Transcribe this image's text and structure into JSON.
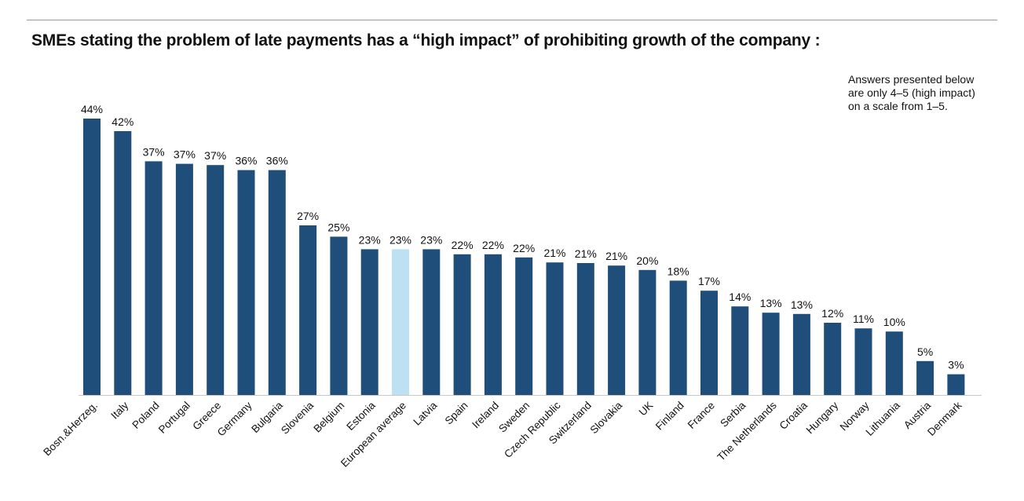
{
  "chart_data": {
    "type": "bar",
    "title": "SMEs stating the problem of late payments has a “high impact” of prohibiting growth of the company :",
    "note": [
      "Answers presented below",
      "are only 4–5 (high impact)",
      "on a scale from 1–5."
    ],
    "value_format": "percent",
    "ylim": [
      0,
      44
    ],
    "grid": false,
    "legend": "none",
    "colors": {
      "default": "#1f4e7a",
      "highlight": "#bde0f3",
      "baseline": "#c8c8c8"
    },
    "highlight_category": "European average",
    "categories": [
      "Bosn.&Herzeg.",
      "Italy",
      "Poland",
      "Portugal",
      "Greece",
      "Germany",
      "Bulgaria",
      "Slovenia",
      "Belgium",
      "Estonia",
      "European average",
      "Latvia",
      "Spain",
      "Ireland",
      "Sweden",
      "Czech Republic",
      "Switzerland",
      "Slovakia",
      "UK",
      "Finland",
      "France",
      "Serbia",
      "The Netherlands",
      "Croatia",
      "Hungary",
      "Norway",
      "Lithuania",
      "Austria",
      "Denmark"
    ],
    "values": [
      44,
      42,
      37.2,
      36.8,
      36.6,
      35.8,
      35.8,
      27,
      25.2,
      23.2,
      23.2,
      23.2,
      22.4,
      22.4,
      21.9,
      21.1,
      21,
      20.6,
      19.9,
      18.2,
      16.6,
      14.1,
      13.1,
      12.9,
      11.5,
      10.6,
      10.1,
      5.4,
      3.3
    ],
    "labels": [
      "44%",
      "42%",
      "37%",
      "37%",
      "37%",
      "36%",
      "36%",
      "27%",
      "25%",
      "23%",
      "23%",
      "23%",
      "22%",
      "22%",
      "22%",
      "21%",
      "21%",
      "21%",
      "20%",
      "18%",
      "17%",
      "14%",
      "13%",
      "13%",
      "12%",
      "11%",
      "10%",
      "5%",
      "3%"
    ]
  }
}
